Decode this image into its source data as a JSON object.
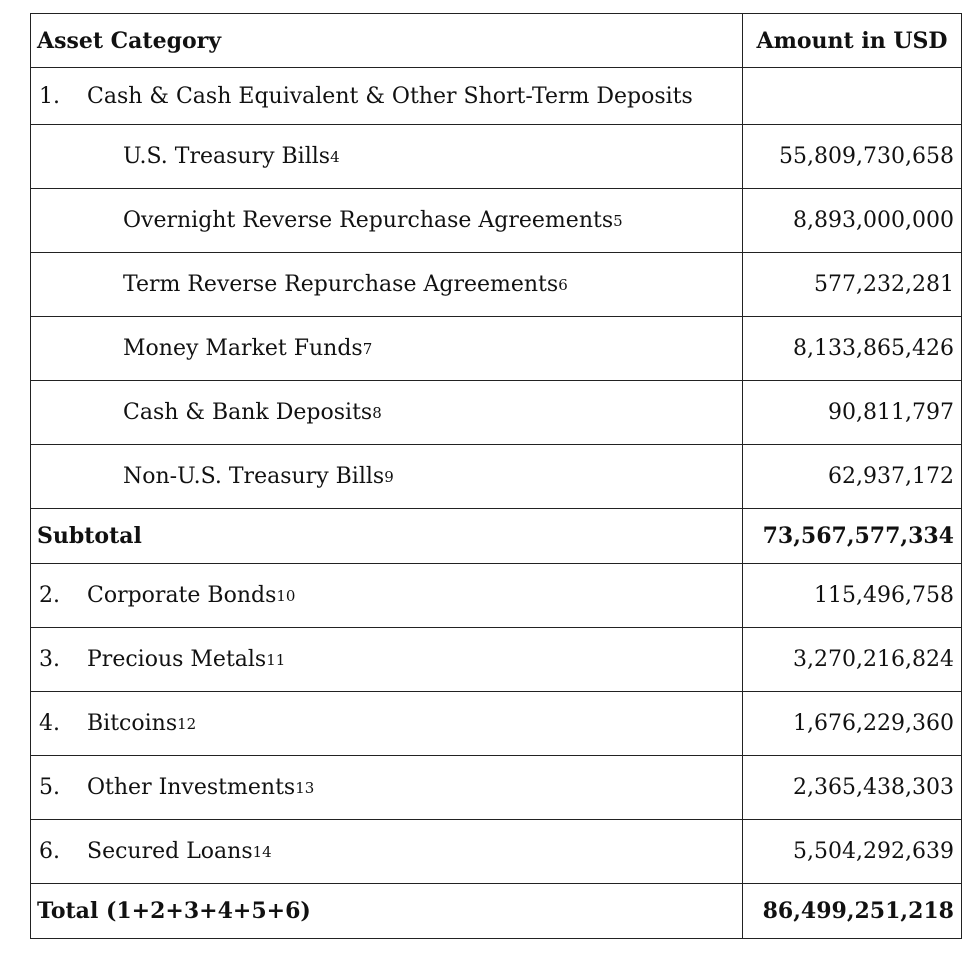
{
  "header": {
    "category_label": "Asset Category",
    "amount_label": "Amount in USD"
  },
  "section1": {
    "index": "1.",
    "label": "Cash & Cash Equivalent & Other Short-Term Deposits",
    "items": [
      {
        "label": "U.S. Treasury Bills",
        "note": "4",
        "amount": "55,809,730,658"
      },
      {
        "label": "Overnight Reverse Repurchase Agreements",
        "note": "5",
        "amount": "8,893,000,000"
      },
      {
        "label": "Term Reverse Repurchase Agreements",
        "note": "6",
        "amount": "577,232,281"
      },
      {
        "label": "Money Market Funds",
        "note": "7",
        "amount": "8,133,865,426"
      },
      {
        "label": "Cash & Bank Deposits",
        "note": "8",
        "amount": "90,811,797"
      },
      {
        "label": "Non-U.S. Treasury Bills",
        "note": "9",
        "amount": "62,937,172"
      }
    ]
  },
  "subtotal": {
    "label": "Subtotal",
    "amount": "73,567,577,334"
  },
  "other_items": [
    {
      "index": "2.",
      "label": "Corporate Bonds",
      "note": "10",
      "amount": "115,496,758"
    },
    {
      "index": "3.",
      "label": "Precious Metals",
      "note": "11",
      "amount": "3,270,216,824"
    },
    {
      "index": "4.",
      "label": "Bitcoins",
      "note": "12",
      "amount": "1,676,229,360"
    },
    {
      "index": "5.",
      "label": "Other Investments",
      "note": "13",
      "amount": "2,365,438,303"
    },
    {
      "index": "6.",
      "label": "Secured Loans",
      "note": "14",
      "amount": "5,504,292,639"
    }
  ],
  "total": {
    "label": "Total (1+2+3+4+5+6)",
    "amount": "86,499,251,218"
  }
}
